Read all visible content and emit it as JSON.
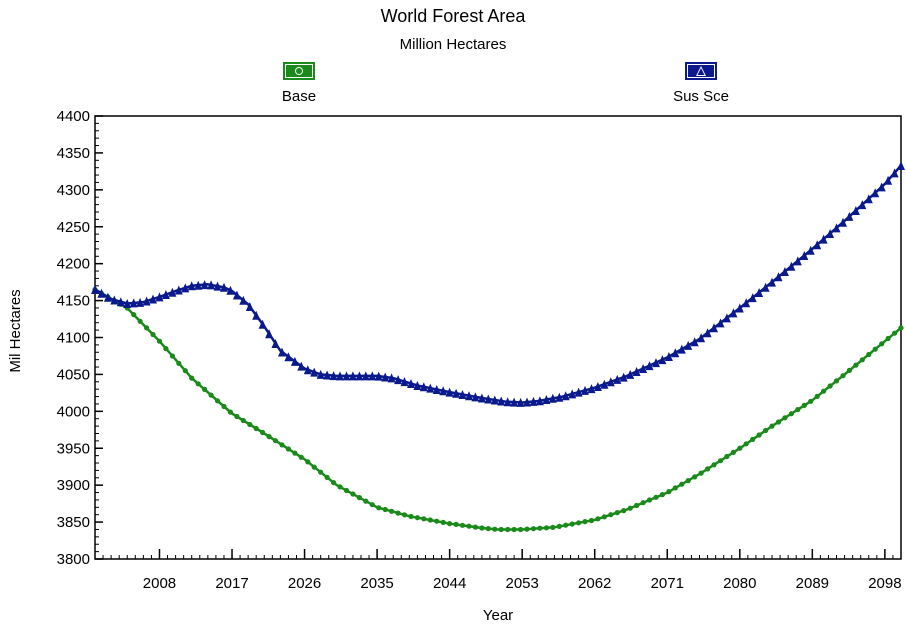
{
  "chart_data": {
    "type": "line",
    "title": "World Forest Area",
    "subtitle": "Million Hectares",
    "xlabel": "Year",
    "ylabel": "Mil Hectares",
    "xlim": [
      2000,
      2100
    ],
    "ylim": [
      3800,
      4400
    ],
    "x_ticks": [
      2008,
      2017,
      2026,
      2035,
      2044,
      2053,
      2062,
      2071,
      2080,
      2089,
      2098
    ],
    "x_tick_labels": [
      "2008",
      "2017",
      "2026",
      "2035",
      "2044",
      "2053",
      "2062",
      "2071",
      "2080",
      "2089",
      "2098"
    ],
    "y_ticks": [
      3800,
      3850,
      3900,
      3950,
      4000,
      4050,
      4100,
      4150,
      4200,
      4250,
      4300,
      4350,
      4400
    ],
    "y_tick_labels": [
      "3800",
      "3850",
      "3900",
      "3950",
      "4000",
      "4050",
      "4100",
      "4150",
      "4200",
      "4250",
      "4300",
      "4350",
      "4400"
    ],
    "grid": false,
    "legend_position": "top",
    "series": [
      {
        "name": "Base",
        "color": "#1a8a1a",
        "marker": "circle",
        "x": [
          2000,
          2004,
          2008,
          2012,
          2017,
          2021,
          2026,
          2030,
          2035,
          2039,
          2044,
          2048,
          2050,
          2053,
          2057,
          2062,
          2066,
          2071,
          2075,
          2080,
          2084,
          2089,
          2093,
          2098,
          2100
        ],
        "y": [
          4165,
          4140,
          4095,
          4045,
          3997,
          3970,
          3935,
          3900,
          3870,
          3858,
          3848,
          3842,
          3840,
          3840,
          3843,
          3853,
          3867,
          3890,
          3915,
          3950,
          3980,
          4015,
          4050,
          4095,
          4113
        ]
      },
      {
        "name": "Sus Sce",
        "color": "#0a1a8c",
        "marker": "triangle",
        "x": [
          2000,
          2002,
          2004,
          2006,
          2008,
          2010,
          2012,
          2014,
          2016,
          2017,
          2019,
          2021,
          2023,
          2026,
          2028,
          2030,
          2035,
          2037,
          2040,
          2044,
          2048,
          2051,
          2053,
          2055,
          2058,
          2062,
          2066,
          2071,
          2075,
          2080,
          2084,
          2089,
          2093,
          2098,
          2100
        ],
        "y": [
          4165,
          4152,
          4146,
          4148,
          4155,
          4163,
          4170,
          4172,
          4168,
          4163,
          4145,
          4115,
          4082,
          4058,
          4050,
          4048,
          4048,
          4045,
          4035,
          4026,
          4018,
          4013,
          4012,
          4014,
          4020,
          4032,
          4048,
          4073,
          4098,
          4140,
          4175,
          4220,
          4258,
          4308,
          4333
        ]
      }
    ]
  }
}
